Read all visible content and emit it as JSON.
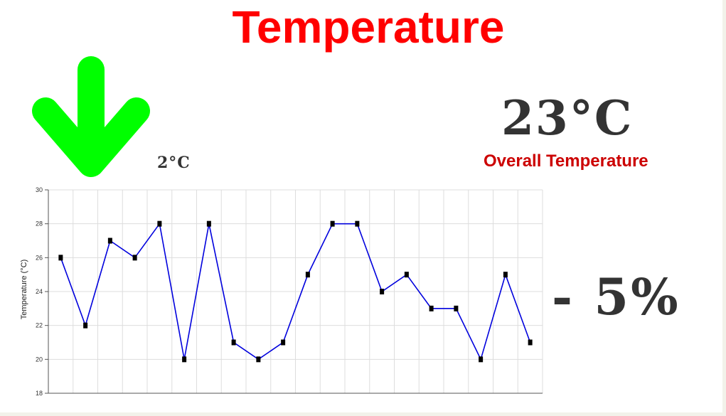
{
  "header": {
    "title": "Temperature"
  },
  "summary": {
    "change_value": "2°C",
    "change_direction": "down",
    "arrow_color": "#00ff00",
    "overall_value": "23°C",
    "overall_label": "Overall Temperature",
    "percent_change": "- 5%"
  },
  "colors": {
    "title": "#ff0000",
    "label": "#cc0000",
    "line": "#0000dd",
    "marker": "#000000"
  },
  "chart_data": {
    "type": "line",
    "ylabel": "Temperature (°C)",
    "xlabel": "",
    "ylim": [
      18,
      30
    ],
    "y_ticks": [
      18,
      20,
      22,
      24,
      26,
      28,
      30
    ],
    "grid": true,
    "series": [
      {
        "values": [
          26,
          22,
          27,
          26,
          28,
          20,
          28,
          21,
          20,
          21,
          25,
          28,
          28,
          24,
          25,
          23,
          23,
          20,
          25,
          21
        ]
      }
    ]
  }
}
